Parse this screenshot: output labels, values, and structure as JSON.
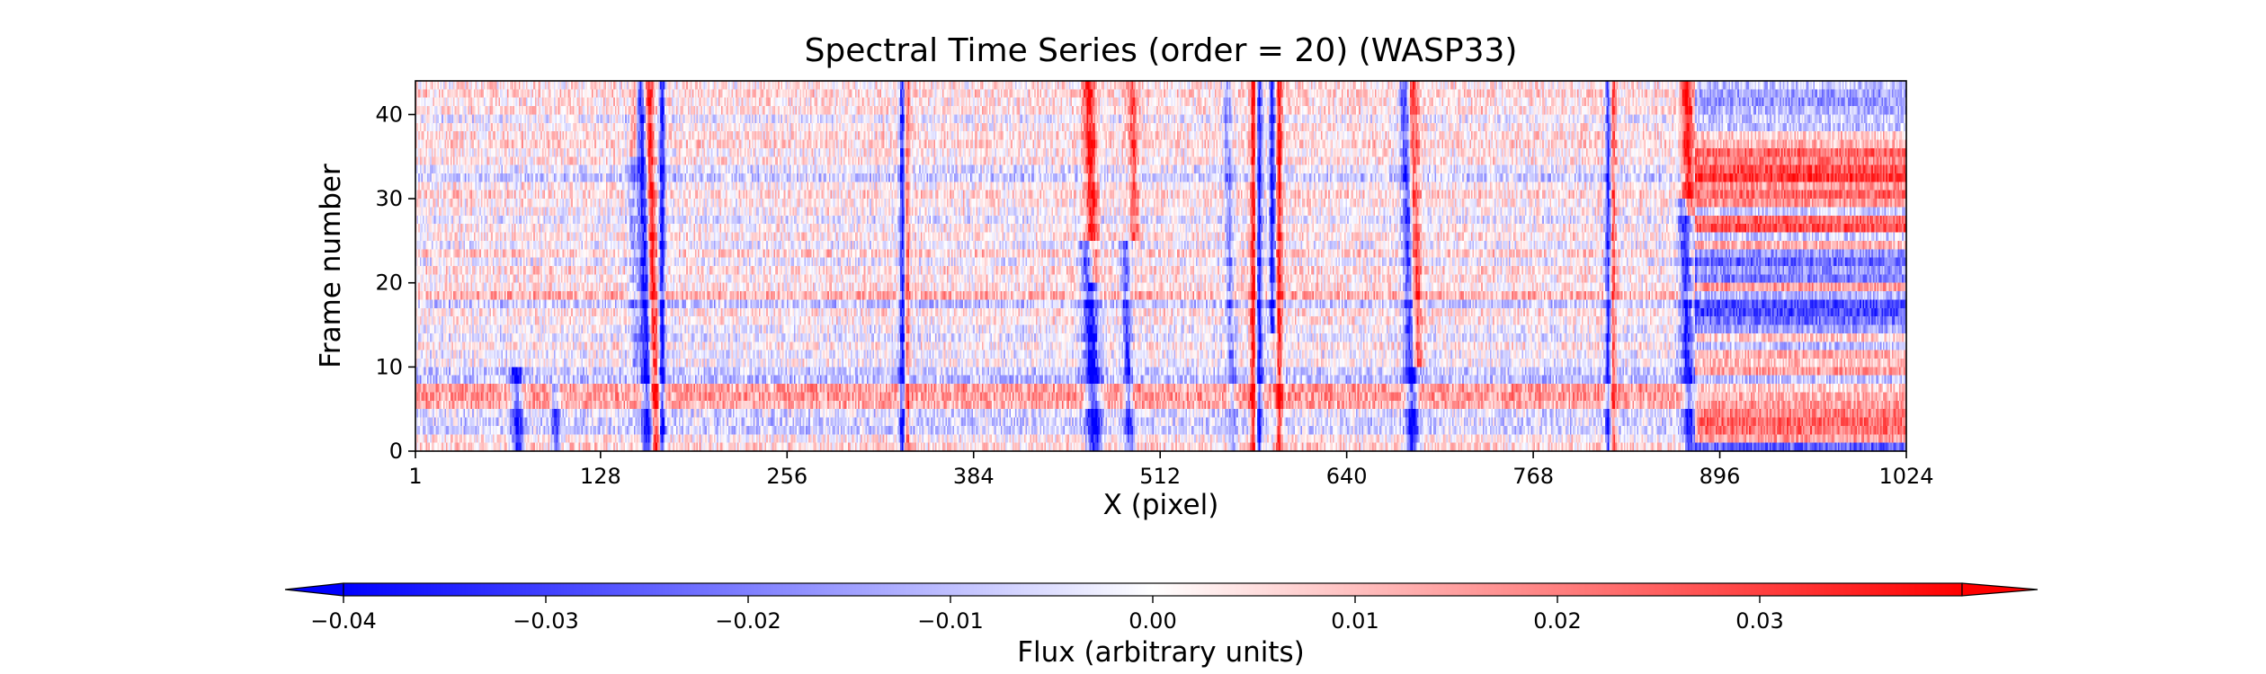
{
  "chart_data": {
    "type": "heatmap",
    "title": "Spectral Time Series (order = 20) (WASP33)",
    "xlabel": "X (pixel)",
    "ylabel": "Frame number",
    "xlim": [
      1,
      1024
    ],
    "ylim": [
      0,
      44
    ],
    "x_ticks": [
      1,
      128,
      256,
      384,
      512,
      640,
      768,
      896,
      1024
    ],
    "y_ticks": [
      0,
      10,
      20,
      30,
      40
    ],
    "n_frames": 44,
    "n_pixels": 1024,
    "colormap": "bwr",
    "color_range": [
      -0.04,
      0.04
    ],
    "colorbar": {
      "label": "Flux (arbitrary units)",
      "orientation": "horizontal",
      "placement": "bottom",
      "extend": "both",
      "ticks": [
        -0.04,
        -0.03,
        -0.02,
        -0.01,
        0.0,
        0.01,
        0.02,
        0.03
      ],
      "tick_labels": [
        "−0.04",
        "−0.03",
        "−0.02",
        "−0.01",
        "0.00",
        "0.01",
        "0.02",
        "0.03"
      ]
    },
    "features": {
      "vertical_lines": [
        {
          "x": 68,
          "amp": -0.035,
          "width": 4,
          "drift": -6,
          "frames": [
            0,
            10
          ]
        },
        {
          "x": 95,
          "amp": -0.028,
          "width": 3,
          "drift": -5,
          "frames": [
            0,
            8
          ]
        },
        {
          "x": 150,
          "amp": -0.015,
          "width": 3,
          "drift": -4,
          "frames": [
            10,
            44
          ]
        },
        {
          "x": 158,
          "amp": -0.04,
          "width": 4,
          "drift": -5,
          "frames": [
            0,
            44
          ]
        },
        {
          "x": 163,
          "amp": 0.04,
          "width": 3,
          "drift": -5,
          "frames": [
            0,
            44
          ]
        },
        {
          "x": 170,
          "amp": -0.04,
          "width": 2,
          "drift": 0,
          "frames": [
            0,
            44
          ]
        },
        {
          "x": 150,
          "amp": 0.03,
          "width": 3,
          "drift": 0,
          "frames": [
            35,
            44
          ]
        },
        {
          "x": 335,
          "amp": -0.04,
          "width": 2,
          "drift": 0,
          "frames": [
            0,
            44
          ]
        },
        {
          "x": 338,
          "amp": 0.02,
          "width": 2,
          "drift": 0,
          "frames": [
            0,
            44
          ]
        },
        {
          "x": 463,
          "amp": -0.04,
          "width": 5,
          "drift": -8,
          "frames": [
            0,
            25
          ]
        },
        {
          "x": 466,
          "amp": 0.035,
          "width": 4,
          "drift": -6,
          "frames": [
            20,
            44
          ]
        },
        {
          "x": 488,
          "amp": -0.03,
          "width": 3,
          "drift": -6,
          "frames": [
            0,
            25
          ]
        },
        {
          "x": 495,
          "amp": 0.025,
          "width": 3,
          "drift": -5,
          "frames": [
            25,
            44
          ]
        },
        {
          "x": 560,
          "amp": -0.02,
          "width": 3,
          "drift": -4,
          "frames": [
            0,
            44
          ]
        },
        {
          "x": 576,
          "amp": 0.04,
          "width": 2,
          "drift": 0,
          "frames": [
            0,
            44
          ]
        },
        {
          "x": 580,
          "amp": -0.04,
          "width": 2,
          "drift": 0,
          "frames": [
            0,
            44
          ]
        },
        {
          "x": 589,
          "amp": -0.04,
          "width": 2,
          "drift": 0,
          "frames": [
            14,
            44
          ]
        },
        {
          "x": 594,
          "amp": 0.035,
          "width": 2,
          "drift": 0,
          "frames": [
            0,
            44
          ]
        },
        {
          "x": 683,
          "amp": -0.04,
          "width": 4,
          "drift": -5,
          "frames": [
            0,
            44
          ]
        },
        {
          "x": 687,
          "amp": 0.035,
          "width": 4,
          "drift": -5,
          "frames": [
            10,
            44
          ]
        },
        {
          "x": 820,
          "amp": -0.04,
          "width": 2,
          "drift": 0,
          "frames": [
            0,
            44
          ]
        },
        {
          "x": 823,
          "amp": 0.03,
          "width": 2,
          "drift": 0,
          "frames": [
            0,
            44
          ]
        },
        {
          "x": 873,
          "amp": -0.035,
          "width": 4,
          "drift": -6,
          "frames": [
            0,
            30
          ]
        },
        {
          "x": 876,
          "amp": 0.035,
          "width": 4,
          "drift": -5,
          "frames": [
            28,
            44
          ]
        }
      ],
      "row_bias": [
        0.01,
        0.004,
        -0.012,
        -0.01,
        -0.008,
        0.022,
        0.026,
        0.025,
        -0.016,
        -0.012,
        0.0,
        -0.004,
        0.005,
        -0.006,
        -0.002,
        0.004,
        0.006,
        -0.014,
        0.02,
        0.006,
        0.004,
        0.008,
        -0.004,
        0.012,
        -0.004,
        0.006,
        0.003,
        -0.006,
        0.002,
        0.004,
        0.01,
        0.003,
        -0.012,
        -0.006,
        0.006,
        0.004,
        0.01,
        0.008,
        0.004,
        -0.004,
        0.008,
        0.006,
        0.01,
        0.006
      ],
      "right_region": {
        "x_start": 880,
        "row_bias": [
          -0.03,
          0.02,
          0.028,
          0.03,
          0.025,
          0.02,
          0.015,
          0.01,
          -0.012,
          0.02,
          0.012,
          0.015,
          -0.012,
          0.01,
          -0.018,
          -0.028,
          -0.035,
          -0.035,
          -0.015,
          0.02,
          -0.025,
          -0.02,
          -0.03,
          -0.02,
          0.015,
          -0.01,
          0.035,
          0.03,
          -0.01,
          0.02,
          0.03,
          0.02,
          0.04,
          0.035,
          0.025,
          0.03,
          0.015,
          0.01,
          -0.012,
          -0.01,
          -0.015,
          -0.02,
          -0.018,
          -0.012
        ]
      }
    }
  }
}
